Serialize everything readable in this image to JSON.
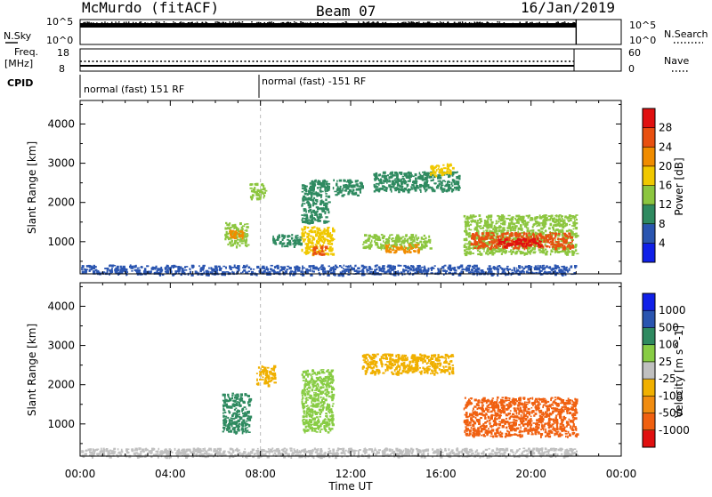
{
  "header": {
    "station": "McMurdo (fitACF)",
    "beam": "Beam 07",
    "date": "16/Jan/2019"
  },
  "strip": {
    "nsky_label": "N.Sky",
    "nsearch_label": "N.Search",
    "freq_label": "Freq.",
    "freq_unit": "[MHz]",
    "nave_label": "Nave",
    "cpid_label": "CPID",
    "noise_left_top": "10^5",
    "noise_left_bottom": "10^0",
    "noise_right_top": "10^5",
    "noise_right_bottom": "10^0",
    "freq_top": "18",
    "freq_bottom": "8",
    "nave_top": "60",
    "nave_bottom": "0",
    "cpid_1": "normal (fast) 151 RF",
    "cpid_2": "normal (fast) -151 RF"
  },
  "colors": {
    "power": [
      "#1020e8",
      "#2a55b0",
      "#2f8a60",
      "#8cc63f",
      "#f0c800",
      "#f08c00",
      "#e85010",
      "#e01010"
    ],
    "velocity": [
      "#e01010",
      "#f06010",
      "#f08c10",
      "#f0b000",
      "#c0c0c0",
      "#88cc44",
      "#2f8a60",
      "#2a55b0",
      "#1020e8"
    ]
  },
  "chart_data": [
    {
      "type": "heatmap",
      "panel": "power",
      "xlabel": "",
      "ylabel": "Slant Range [km]",
      "xlim": [
        "00:00",
        "24:00"
      ],
      "ylim": [
        180,
        4600
      ],
      "yticks": [
        "1000",
        "2000",
        "3000",
        "4000"
      ],
      "colorbar_label": "Power [dB]",
      "colorbar_ticks": [
        "4",
        "8",
        "12",
        "16",
        "20",
        "24",
        "28"
      ],
      "colorbar_range": [
        0,
        30
      ],
      "echo_regions": [
        {
          "t0": 0.0,
          "t1": 22.0,
          "r0": 180,
          "r1": 420,
          "value": 6
        },
        {
          "t0": 6.4,
          "t1": 7.4,
          "r0": 900,
          "r1": 1500,
          "value": 14
        },
        {
          "t0": 6.6,
          "t1": 7.2,
          "r0": 1100,
          "r1": 1300,
          "value": 22
        },
        {
          "t0": 7.5,
          "t1": 8.2,
          "r0": 2100,
          "r1": 2500,
          "value": 12
        },
        {
          "t0": 8.5,
          "t1": 9.8,
          "r0": 900,
          "r1": 1200,
          "value": 10
        },
        {
          "t0": 9.8,
          "t1": 11.2,
          "r0": 700,
          "r1": 1400,
          "value": 16
        },
        {
          "t0": 10.3,
          "t1": 10.9,
          "r0": 700,
          "r1": 900,
          "value": 24
        },
        {
          "t0": 9.8,
          "t1": 11.0,
          "r0": 1500,
          "r1": 2600,
          "value": 10
        },
        {
          "t0": 11.2,
          "t1": 12.5,
          "r0": 2200,
          "r1": 2600,
          "value": 9
        },
        {
          "t0": 12.5,
          "t1": 15.5,
          "r0": 850,
          "r1": 1200,
          "value": 12
        },
        {
          "t0": 13.5,
          "t1": 15.0,
          "r0": 750,
          "r1": 950,
          "value": 22
        },
        {
          "t0": 13.0,
          "t1": 16.8,
          "r0": 2300,
          "r1": 2800,
          "value": 11
        },
        {
          "t0": 15.5,
          "t1": 16.5,
          "r0": 2700,
          "r1": 3000,
          "value": 17
        },
        {
          "t0": 17.0,
          "t1": 22.0,
          "r0": 700,
          "r1": 1700,
          "value": 12
        },
        {
          "t0": 17.3,
          "t1": 21.8,
          "r0": 850,
          "r1": 1250,
          "value": 24
        },
        {
          "t0": 18.5,
          "t1": 20.5,
          "r0": 900,
          "r1": 1100,
          "value": 28
        }
      ]
    },
    {
      "type": "heatmap",
      "panel": "velocity",
      "xlabel": "Time UT",
      "ylabel": "Slant Range [km]",
      "xlim": [
        "00:00",
        "24:00"
      ],
      "xticks": [
        "00:00",
        "04:00",
        "08:00",
        "12:00",
        "16:00",
        "20:00",
        "00:00"
      ],
      "ylim": [
        180,
        4600
      ],
      "yticks": [
        "1000",
        "2000",
        "3000",
        "4000"
      ],
      "colorbar_label": "Velocity [m s^-1]",
      "colorbar_ticks": [
        "1000",
        "500",
        "100",
        "25",
        "-25",
        "-100",
        "-500",
        "-1000"
      ],
      "echo_regions": [
        {
          "t0": 0.0,
          "t1": 22.0,
          "r0": 180,
          "r1": 400,
          "value": "25 to -25"
        },
        {
          "t0": 6.3,
          "t1": 7.5,
          "r0": 800,
          "r1": 1800,
          "value": "100 to 500"
        },
        {
          "t0": 7.8,
          "t1": 8.6,
          "r0": 2000,
          "r1": 2500,
          "value": "-25 to -100"
        },
        {
          "t0": 9.8,
          "t1": 11.2,
          "r0": 800,
          "r1": 2400,
          "value": "25 to 100"
        },
        {
          "t0": 12.5,
          "t1": 16.5,
          "r0": 2300,
          "r1": 2800,
          "value": "-25 to -100"
        },
        {
          "t0": 17.0,
          "t1": 22.0,
          "r0": 700,
          "r1": 1700,
          "value": "-100 to -500"
        }
      ]
    }
  ]
}
